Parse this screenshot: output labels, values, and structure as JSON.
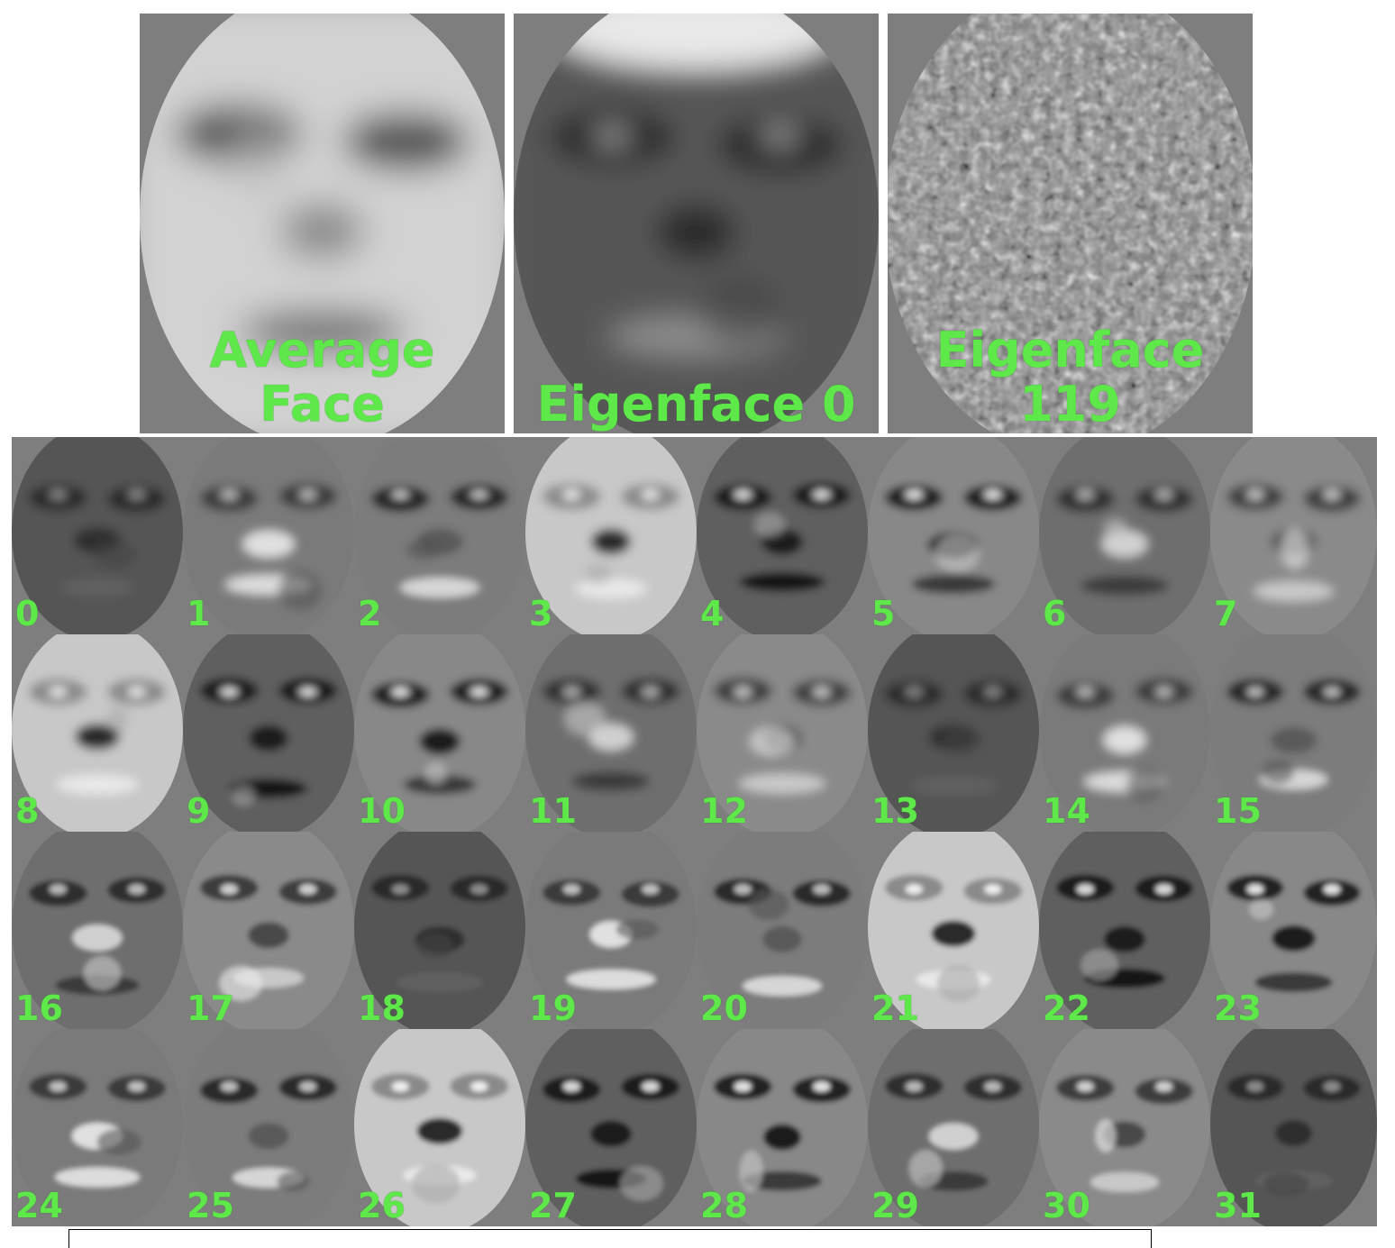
{
  "top_row": [
    {
      "label": "Average Face",
      "kind": "average"
    },
    {
      "label": "Eigenface 0",
      "kind": "eigen0"
    },
    {
      "label": "Eigenface 119",
      "kind": "noise"
    }
  ],
  "grid_labels": [
    "0",
    "1",
    "2",
    "3",
    "4",
    "5",
    "6",
    "7",
    "8",
    "9",
    "10",
    "11",
    "12",
    "13",
    "14",
    "15",
    "16",
    "17",
    "18",
    "19",
    "20",
    "21",
    "22",
    "23",
    "24",
    "25",
    "26",
    "27",
    "28",
    "29",
    "30",
    "31"
  ],
  "colors": {
    "label_green": "#5ee84a",
    "background_gray": "#7e7e7e"
  }
}
